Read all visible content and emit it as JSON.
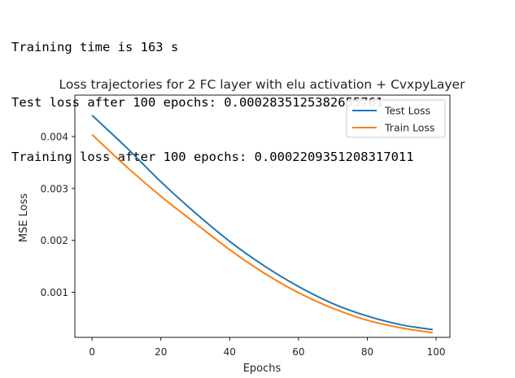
{
  "console": {
    "lines": [
      "Training time is 163 s",
      "Test loss after 100 epochs: 0.0002835125382655761",
      "Training loss after 100 epochs: 0.0002209351208317011"
    ]
  },
  "chart_data": {
    "type": "line",
    "title": "Loss trajectories for 2 FC layer with elu activation + CvxpyLayer",
    "xlabel": "Epochs",
    "ylabel": "MSE Loss",
    "xlim": [
      -5,
      104
    ],
    "ylim": [
      0.00013,
      0.0048
    ],
    "x_ticks": [
      0,
      20,
      40,
      60,
      80,
      100
    ],
    "y_ticks": [
      0.001,
      0.002,
      0.003,
      0.004
    ],
    "y_tick_labels": [
      "0.001",
      "0.002",
      "0.003",
      "0.004"
    ],
    "grid": false,
    "legend_position": "top-right",
    "series": [
      {
        "name": "Test Loss",
        "color": "#1f77b4",
        "x": [
          0,
          10,
          20,
          30,
          40,
          50,
          60,
          70,
          80,
          90,
          99
        ],
        "values": [
          0.00441,
          0.00379,
          0.00313,
          0.00253,
          0.00198,
          0.00151,
          0.00111,
          0.00078,
          0.00054,
          0.00037,
          0.00028
        ]
      },
      {
        "name": "Train Loss",
        "color": "#ff7f0e",
        "x": [
          0,
          10,
          20,
          30,
          40,
          50,
          60,
          70,
          80,
          90,
          99
        ],
        "values": [
          0.00404,
          0.00342,
          0.00285,
          0.00233,
          0.00182,
          0.00137,
          0.00099,
          0.00069,
          0.00046,
          0.00031,
          0.00022
        ]
      }
    ]
  }
}
